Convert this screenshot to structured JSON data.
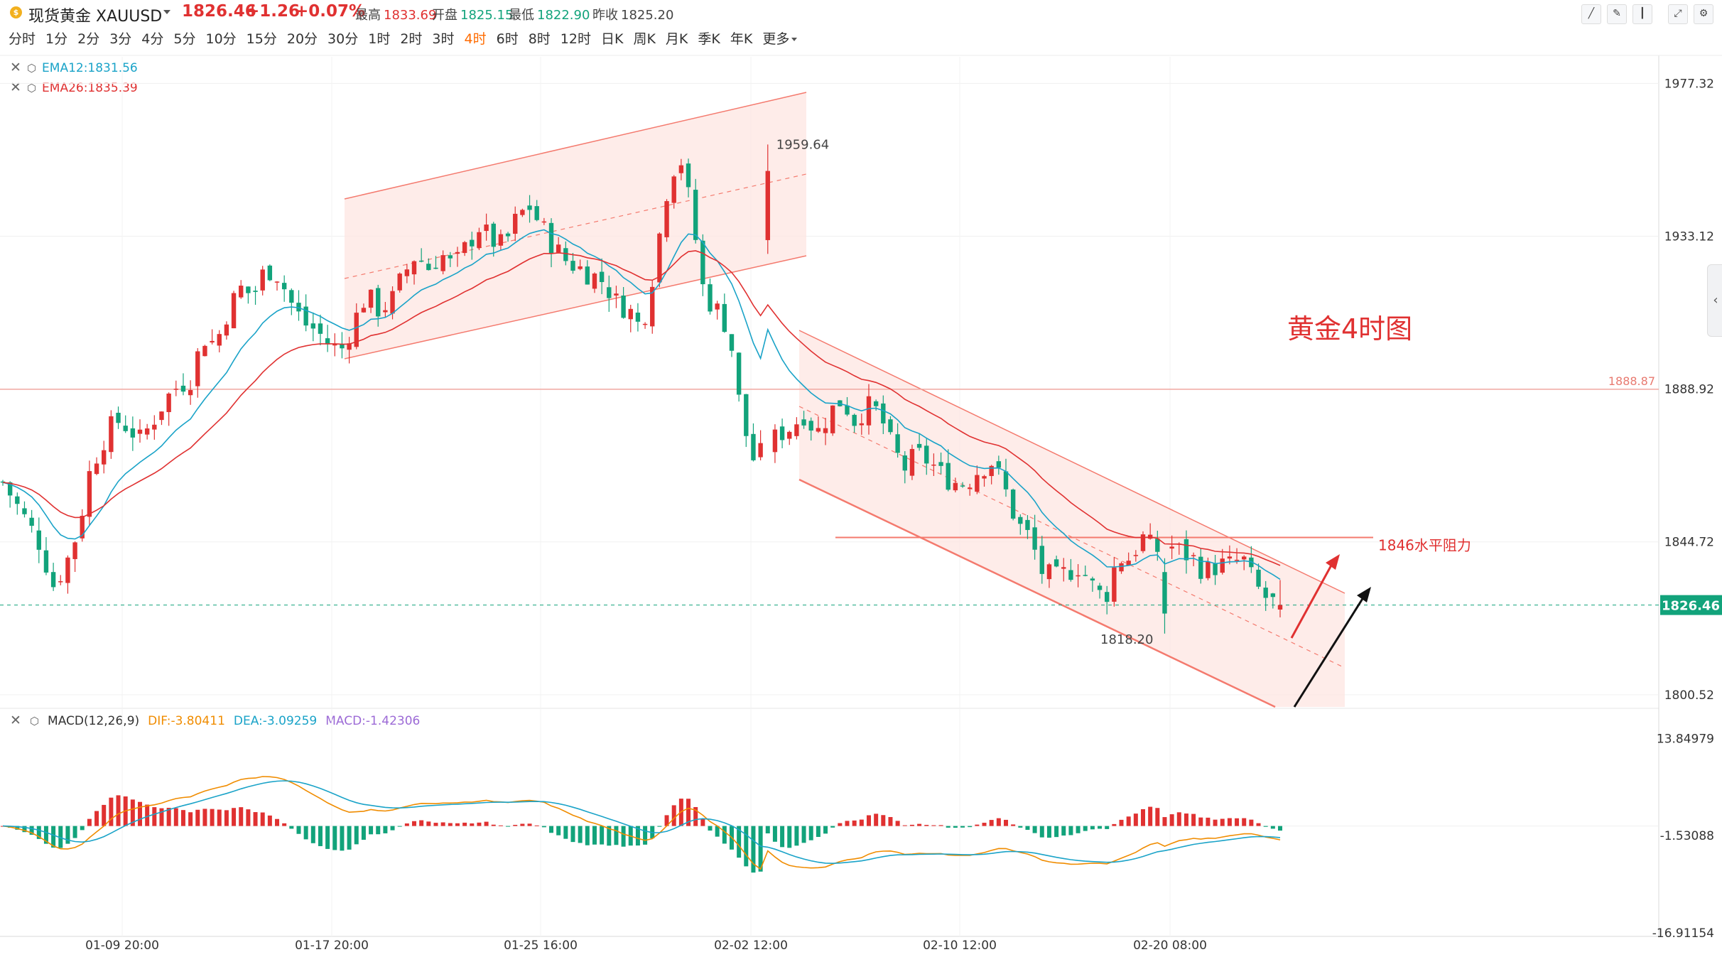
{
  "header": {
    "symbol": "现货黄金 XAUUSD",
    "last": "1826.46",
    "change": "+1.26",
    "change_pct": "+0.07%",
    "stats": [
      {
        "label": "最高",
        "value": "1833.69",
        "color": "#e03131"
      },
      {
        "label": "开盘",
        "value": "1825.15",
        "color": "#12a37b"
      },
      {
        "label": "最低",
        "value": "1822.90",
        "color": "#12a37b"
      },
      {
        "label": "昨收",
        "value": "1825.20",
        "color": "#444444"
      }
    ]
  },
  "intervals": [
    "分时",
    "1分",
    "2分",
    "3分",
    "4分",
    "5分",
    "10分",
    "15分",
    "20分",
    "30分",
    "1时",
    "2时",
    "3时",
    "4时",
    "6时",
    "8时",
    "12时",
    "日K",
    "周K",
    "月K",
    "季K",
    "年K",
    "更多"
  ],
  "active_interval": "4时",
  "indicators": {
    "ema12": {
      "label": "EMA12:1831.56",
      "color": "#1aa3c8"
    },
    "ema26": {
      "label": "EMA26:1835.39",
      "color": "#e03131"
    },
    "macd": {
      "name": "MACD(12,26,9)",
      "dif": "DIF:-3.80411",
      "dea": "DEA:-3.09259",
      "macd": "MACD:-1.42306",
      "dif_color": "#f08c00",
      "dea_color": "#1aa3c8",
      "macd_color": "#9c6ad6"
    }
  },
  "colors": {
    "up": "#e03131",
    "down": "#12a37b",
    "channel": "#f47a6e",
    "channel_fill": "#fde6e1"
  },
  "chart_data": [
    {
      "type": "candlestick",
      "title": "黄金4时图",
      "price_axis_ticks": [
        1977.32,
        1933.12,
        1888.92,
        1844.72,
        1800.52
      ],
      "ylim": [
        1797,
        1985
      ],
      "x_ticks": [
        "01-09 20:00",
        "01-17 20:00",
        "01-25 16:00",
        "02-02 12:00",
        "02-10 12:00",
        "02-20 08:00"
      ],
      "last_price": 1826.46,
      "horizontal_line": 1888.87,
      "annotations": {
        "high": "1959.64",
        "low": "1818.20",
        "resistance": "1846水平阻力",
        "resistance_level": 1846
      },
      "series": [
        {
          "name": "EMA12",
          "last": 1831.56
        },
        {
          "name": "EMA26",
          "last": 1835.39
        }
      ],
      "close_path": [
        1862,
        1856,
        1850,
        1844,
        1832,
        1838,
        1848,
        1866,
        1874,
        1880,
        1878,
        1874,
        1880,
        1886,
        1890,
        1892,
        1904,
        1902,
        1912,
        1918,
        1916,
        1924,
        1922,
        1914,
        1908,
        1906,
        1902,
        1900,
        1908,
        1916,
        1912,
        1914,
        1922,
        1928,
        1924,
        1928,
        1924,
        1930,
        1936,
        1932,
        1930,
        1938,
        1942,
        1936,
        1930,
        1926,
        1924,
        1922,
        1920,
        1914,
        1912,
        1906,
        1924,
        1946,
        1958,
        1940,
        1916,
        1912,
        1906,
        1880,
        1868,
        1872,
        1876,
        1878,
        1882,
        1876,
        1882,
        1886,
        1880,
        1884,
        1882,
        1872,
        1866,
        1870,
        1868,
        1864,
        1862,
        1862,
        1866,
        1868,
        1860,
        1850,
        1846,
        1836,
        1834,
        1836,
        1838,
        1832,
        1828,
        1840,
        1840,
        1846,
        1842,
        1844,
        1842,
        1840,
        1836,
        1838,
        1838,
        1840,
        1832,
        1828,
        1826
      ]
    },
    {
      "type": "bar",
      "title": "MACD(12,26,9)",
      "axis_ticks": [
        13.84979,
        -1.53088,
        -16.91154
      ],
      "ylim": [
        -17.5,
        15.5
      ],
      "series": [
        {
          "name": "DIF",
          "last": -3.80411
        },
        {
          "name": "DEA",
          "last": -3.09259
        },
        {
          "name": "MACD",
          "last": -1.42306
        }
      ]
    }
  ],
  "macd_ticks": [
    "13.84979",
    "-1.53088",
    "-16.91154"
  ],
  "price_ticks": [
    "1977.32",
    "1933.12",
    "1888.92",
    "1844.72",
    "1800.52"
  ],
  "last_price_label": "1826.46",
  "hline_label": "1888.87"
}
